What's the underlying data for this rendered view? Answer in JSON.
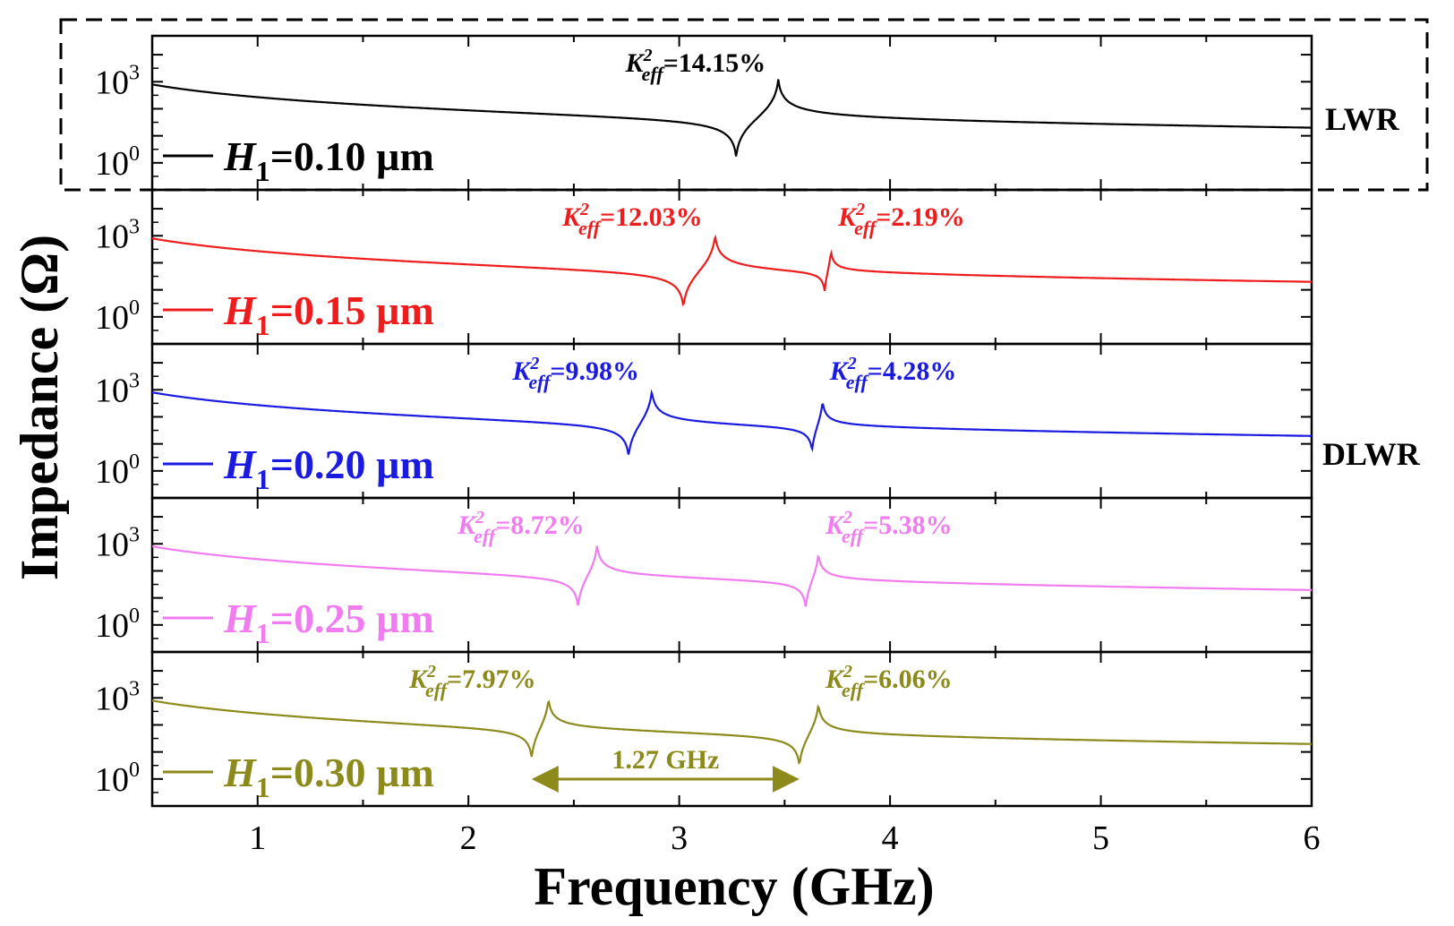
{
  "chart_data": {
    "type": "line",
    "title": "",
    "xlabel": "Frequency (GHz)",
    "ylabel": "Impedance (Ω)",
    "xlim": [
      0.5,
      6
    ],
    "x_ticks": [
      "1",
      "2",
      "3",
      "4",
      "5",
      "6"
    ],
    "y_scale": "log",
    "ylim": [
      0.1,
      50000
    ],
    "y_tick_labels": [
      {
        "base": "10",
        "exp": "3"
      },
      {
        "base": "10",
        "exp": "0"
      }
    ],
    "panels": [
      {
        "name": "H1=0.10 µm",
        "legend": {
          "symbol": "H",
          "sub": "1",
          "value": "=0.10 µm"
        },
        "color": "#000000",
        "group": "LWR",
        "resonances": [
          {
            "fr": 3.27,
            "fa": 3.47,
            "k2_value": "=14.15%",
            "k2_symbol": "K",
            "k2_sup": "2",
            "k2_sub": "eff"
          }
        ]
      },
      {
        "name": "H1=0.15 µm",
        "legend": {
          "symbol": "H",
          "sub": "1",
          "value": "=0.15 µm"
        },
        "color": "#ee1c1c",
        "group": "DLWR",
        "resonances": [
          {
            "fr": 3.02,
            "fa": 3.17,
            "k2_value": "=12.03%",
            "k2_symbol": "K",
            "k2_sup": "2",
            "k2_sub": "eff"
          },
          {
            "fr": 3.69,
            "fa": 3.72,
            "k2_value": "=2.19%",
            "k2_symbol": "K",
            "k2_sup": "2",
            "k2_sub": "eff"
          }
        ]
      },
      {
        "name": "H1=0.20 µm",
        "legend": {
          "symbol": "H",
          "sub": "1",
          "value": "=0.20 µm"
        },
        "color": "#1a1ae0",
        "group": "DLWR",
        "resonances": [
          {
            "fr": 2.76,
            "fa": 2.87,
            "k2_value": "=9.98%",
            "k2_symbol": "K",
            "k2_sup": "2",
            "k2_sub": "eff"
          },
          {
            "fr": 3.63,
            "fa": 3.68,
            "k2_value": "=4.28%",
            "k2_symbol": "K",
            "k2_sup": "2",
            "k2_sub": "eff"
          }
        ]
      },
      {
        "name": "H1=0.25 µm",
        "legend": {
          "symbol": "H",
          "sub": "1",
          "value": "=0.25 µm"
        },
        "color": "#f07cf0",
        "group": "DLWR",
        "resonances": [
          {
            "fr": 2.52,
            "fa": 2.61,
            "k2_value": "=8.72%",
            "k2_symbol": "K",
            "k2_sup": "2",
            "k2_sub": "eff"
          },
          {
            "fr": 3.6,
            "fa": 3.66,
            "k2_value": "=5.38%",
            "k2_symbol": "K",
            "k2_sup": "2",
            "k2_sub": "eff"
          }
        ]
      },
      {
        "name": "H1=0.30 µm",
        "legend": {
          "symbol": "H",
          "sub": "1",
          "value": "=0.30 µm"
        },
        "color": "#8c8a1a",
        "group": "DLWR",
        "resonances": [
          {
            "fr": 2.3,
            "fa": 2.38,
            "k2_value": "=7.97%",
            "k2_symbol": "K",
            "k2_sup": "2",
            "k2_sub": "eff"
          },
          {
            "fr": 3.57,
            "fa": 3.66,
            "k2_value": "=6.06%",
            "k2_symbol": "K",
            "k2_sup": "2",
            "k2_sub": "eff"
          }
        ],
        "spacing_annotation": {
          "from": 2.3,
          "to": 3.57,
          "label": "1.27 GHz"
        }
      }
    ],
    "group_labels": [
      "LWR",
      "DLWR"
    ]
  }
}
